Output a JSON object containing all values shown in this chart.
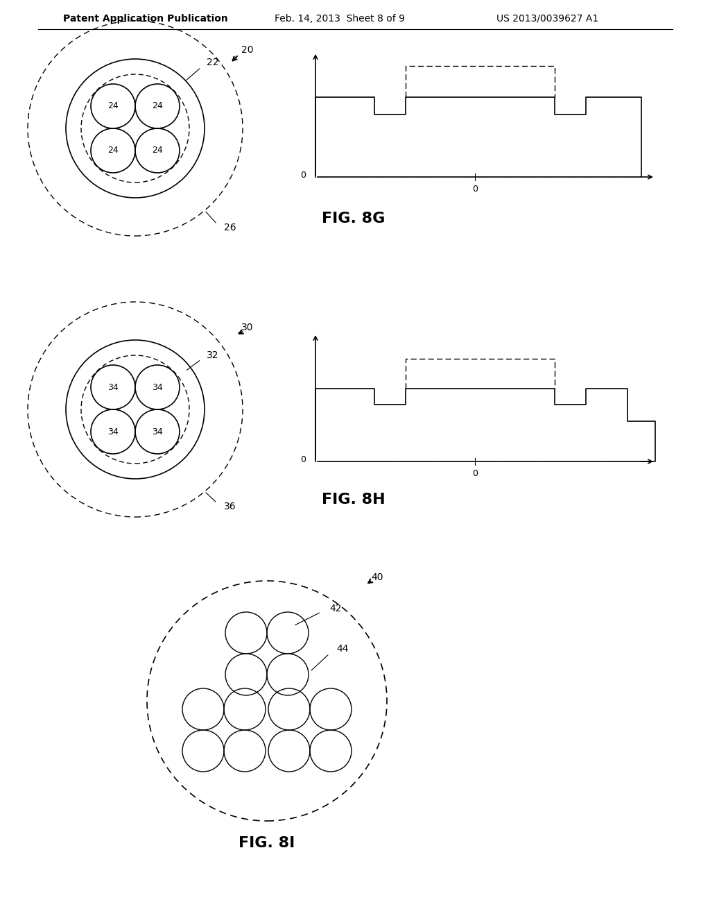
{
  "header_left": "Patent Application Publication",
  "header_mid": "Feb. 14, 2013  Sheet 8 of 9",
  "header_right": "US 2013/0039627 A1",
  "fig8g_label": "FIG. 8G",
  "fig8h_label": "FIG. 8H",
  "fig8i_label": "FIG. 8I",
  "label_20": "20",
  "label_22": "22",
  "label_24": "24",
  "label_26": "26",
  "label_30": "30",
  "label_32": "32",
  "label_34": "34",
  "label_36": "36",
  "label_40": "40",
  "label_42": "42",
  "label_44": "44",
  "bg_color": "#ffffff",
  "line_color": "#000000"
}
